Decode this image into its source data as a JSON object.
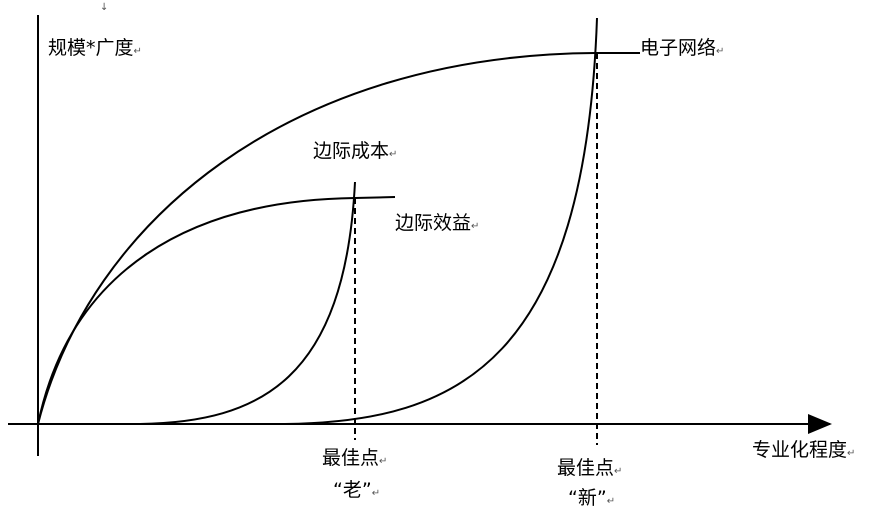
{
  "labels": {
    "y_axis": "规模*广度",
    "x_axis": "专业化程度",
    "electronic_network": "电子网络",
    "marginal_cost": "边际成本",
    "marginal_benefit": "边际效益",
    "optimum_old_line1": "最佳点",
    "optimum_old_line2": "“老”",
    "optimum_new_line1": "最佳点",
    "optimum_new_line2": "“新”"
  },
  "marks": {
    "return": "↵",
    "down_arrow": "↓"
  },
  "colors": {
    "line": "#000000",
    "background": "#ffffff"
  }
}
